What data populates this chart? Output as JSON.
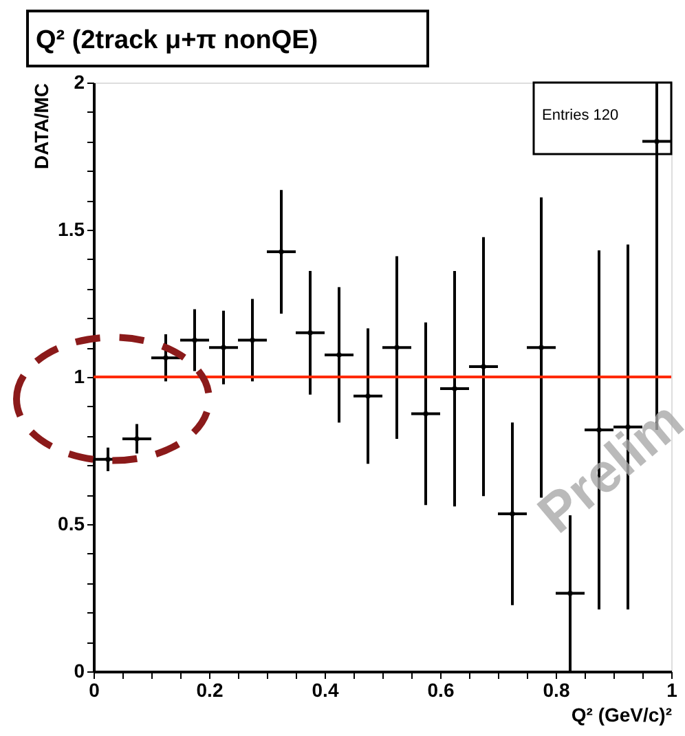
{
  "chart_data": {
    "type": "scatter",
    "title": "Q² (2track μ+π nonQE)",
    "xlabel": "Q² (GeV/c)²",
    "ylabel": "DATA/MC",
    "x": [
      0.025,
      0.075,
      0.125,
      0.175,
      0.225,
      0.275,
      0.325,
      0.375,
      0.425,
      0.475,
      0.525,
      0.575,
      0.625,
      0.675,
      0.725,
      0.775,
      0.825,
      0.875,
      0.925,
      0.975
    ],
    "series": [
      {
        "color": "#000000",
        "values": [
          0.72,
          0.79,
          1.065,
          1.125,
          1.1,
          1.125,
          1.425,
          1.15,
          1.075,
          0.935,
          1.1,
          0.875,
          0.96,
          1.035,
          0.535,
          1.1,
          0.265,
          0.82,
          0.83,
          1.8
        ],
        "errors": [
          0.04,
          0.05,
          0.08,
          0.105,
          0.125,
          0.14,
          0.21,
          0.21,
          0.23,
          0.23,
          0.31,
          0.31,
          0.4,
          0.44,
          0.31,
          0.51,
          0.265,
          0.61,
          0.62,
          [
            0.82,
            2.0
          ]
        ],
        "xerrors": [
          0.025,
          0.025,
          0.025,
          0.025,
          0.025,
          0.025,
          0.025,
          0.025,
          0.025,
          0.025,
          0.025,
          0.025,
          0.025,
          0.025,
          0.025,
          0.025,
          0.025,
          0.025,
          0.025,
          0.025
        ]
      }
    ],
    "grid": false,
    "xlim": [
      0,
      1
    ],
    "ylim": [
      0,
      2
    ],
    "xticks": [
      0,
      {
        "value": 0.05,
        "label": null
      },
      {
        "value": 0.1,
        "label": null
      },
      {
        "value": 0.15,
        "label": null
      },
      0.2,
      {
        "value": 0.25,
        "label": null
      },
      {
        "value": 0.3,
        "label": null
      },
      {
        "value": 0.35,
        "label": null
      },
      0.4,
      {
        "value": 0.45,
        "label": null
      },
      {
        "value": 0.5,
        "label": null
      },
      {
        "value": 0.55,
        "label": null
      },
      0.6,
      {
        "value": 0.65,
        "label": null
      },
      {
        "value": 0.7,
        "label": null
      },
      {
        "value": 0.75,
        "label": null
      },
      0.8,
      {
        "value": 0.85,
        "label": null
      },
      {
        "value": 0.9,
        "label": null
      },
      {
        "value": 0.95,
        "label": null
      },
      1
    ],
    "yticks": [
      0,
      {
        "value": 0.1,
        "label": null
      },
      {
        "value": 0.2,
        "label": null
      },
      {
        "value": 0.3,
        "label": null
      },
      {
        "value": 0.4,
        "label": null
      },
      0.5,
      {
        "value": 0.6,
        "label": null
      },
      {
        "value": 0.7,
        "label": null
      },
      {
        "value": 0.8,
        "label": null
      },
      {
        "value": 0.9,
        "label": null
      },
      1,
      {
        "value": 1.1,
        "label": null
      },
      {
        "value": 1.2,
        "label": null
      },
      {
        "value": 1.3,
        "label": null
      },
      {
        "value": 1.4,
        "label": null
      },
      1.5,
      {
        "value": 1.6,
        "label": null
      },
      {
        "value": 1.7,
        "label": null
      },
      {
        "value": 1.8,
        "label": null
      },
      {
        "value": 1.9,
        "label": null
      },
      2
    ],
    "ref_lines": [
      {
        "axis": "y",
        "value": 1,
        "color": "#ff2a00"
      }
    ],
    "annotations": [
      "Entries 120",
      "Prelim"
    ]
  }
}
